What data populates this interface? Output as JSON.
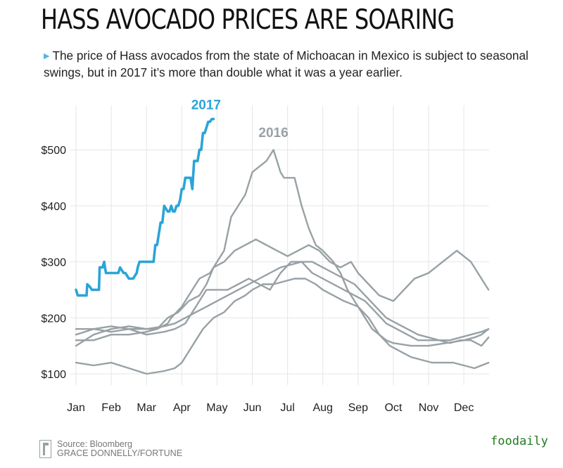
{
  "title": "HASS AVOCADO PRICES ARE SOARING",
  "subtitle": "The price of Hass avocados from the state of Michoacan in Mexico is subject to seasonal swings, but in 2017 it’s more than double what it was a year earlier.",
  "source": {
    "line1": "Source: Bloomberg",
    "line2": "GRACE DONNELLY/FORTUNE"
  },
  "watermark": "foodaily",
  "colors": {
    "highlight": "#2ba4d8",
    "other_years": "#98a1a5",
    "grid": "#e6e6e6"
  },
  "chart_data": {
    "type": "line",
    "title": "HASS AVOCADO PRICES ARE SOARING",
    "xlabel": "",
    "ylabel": "",
    "x_ticks": [
      "Jan",
      "Feb",
      "Mar",
      "Apr",
      "May",
      "Jun",
      "Jul",
      "Aug",
      "Sep",
      "Oct",
      "Nov",
      "Dec"
    ],
    "y_ticks": [
      "$100",
      "$200",
      "$300",
      "$400",
      "$500"
    ],
    "y_tick_values": [
      100,
      200,
      300,
      400,
      500
    ],
    "xlim": [
      0,
      11.75
    ],
    "ylim": [
      90,
      560
    ],
    "grid": true,
    "legend": "none",
    "series": [
      {
        "name": "2017",
        "highlight": true,
        "label": "2017",
        "x": [
          0,
          0.05,
          0.3,
          0.32,
          0.4,
          0.45,
          0.65,
          0.67,
          0.75,
          0.8,
          0.82,
          0.85,
          0.9,
          0.95,
          1.0,
          1.2,
          1.25,
          1.3,
          1.35,
          1.4,
          1.5,
          1.55,
          1.62,
          1.72,
          1.75,
          1.8,
          1.85,
          1.9,
          2.0,
          2.05,
          2.1,
          2.2,
          2.25,
          2.3,
          2.4,
          2.45,
          2.5,
          2.55,
          2.6,
          2.65,
          2.7,
          2.75,
          2.8,
          2.85,
          2.9,
          2.95,
          3.0,
          3.05,
          3.1,
          3.15,
          3.2,
          3.25,
          3.3,
          3.35,
          3.4,
          3.45,
          3.5,
          3.55,
          3.6,
          3.65,
          3.7,
          3.75,
          3.8,
          3.85,
          3.9
        ],
        "values": [
          250,
          240,
          240,
          260,
          255,
          250,
          250,
          290,
          290,
          300,
          290,
          280,
          280,
          280,
          280,
          280,
          290,
          285,
          280,
          280,
          270,
          270,
          270,
          280,
          290,
          300,
          300,
          300,
          300,
          300,
          300,
          300,
          330,
          330,
          370,
          370,
          400,
          395,
          390,
          390,
          400,
          390,
          390,
          400,
          400,
          410,
          430,
          430,
          450,
          450,
          450,
          450,
          430,
          480,
          480,
          480,
          500,
          500,
          530,
          530,
          540,
          550,
          550,
          555,
          555
        ]
      },
      {
        "name": "2016",
        "label": "2016",
        "x": [
          0,
          0.5,
          1,
          1.5,
          2.0,
          2.3,
          2.6,
          2.7,
          3.0,
          3.2,
          3.3,
          3.5,
          3.8,
          4.0,
          4.2,
          4.4,
          4.6,
          4.8,
          5.0,
          5.2,
          5.4,
          5.5,
          5.6,
          5.8,
          5.9,
          6.0,
          6.2,
          6.4,
          6.6,
          6.8,
          7.0,
          7.3,
          7.5,
          7.7,
          8.0,
          8.2,
          8.4,
          8.6,
          8.8,
          9.0,
          9.5,
          10.0,
          10.5,
          11.0,
          11.3,
          11.5,
          11.7
        ],
        "values": [
          150,
          170,
          180,
          185,
          180,
          180,
          190,
          200,
          220,
          240,
          250,
          270,
          280,
          300,
          320,
          380,
          400,
          420,
          460,
          470,
          480,
          490,
          500,
          460,
          450,
          450,
          450,
          400,
          360,
          330,
          320,
          300,
          280,
          250,
          220,
          200,
          180,
          170,
          160,
          155,
          150,
          150,
          155,
          160,
          165,
          170,
          180
        ]
      },
      {
        "name": "",
        "x": [
          0,
          0.5,
          1.0,
          1.5,
          2.0,
          2.5,
          2.8,
          3.0,
          3.3,
          3.6,
          3.9,
          4.2,
          4.5,
          4.8,
          5.0,
          5.3,
          5.6,
          5.9,
          6.2,
          6.5,
          6.8,
          7.0,
          7.3,
          7.6,
          8.0,
          8.3,
          8.6,
          8.9,
          9.2,
          9.5,
          9.8,
          10.1,
          10.4,
          10.7,
          11.0,
          11.3,
          11.7
        ],
        "values": [
          120,
          115,
          120,
          110,
          100,
          105,
          110,
          120,
          150,
          180,
          200,
          210,
          230,
          240,
          250,
          260,
          260,
          265,
          270,
          270,
          260,
          250,
          240,
          230,
          220,
          200,
          170,
          150,
          140,
          130,
          125,
          120,
          120,
          120,
          115,
          110,
          120
        ]
      },
      {
        "name": "",
        "x": [
          0,
          0.5,
          1.0,
          1.5,
          2.0,
          2.3,
          2.6,
          2.9,
          3.2,
          3.5,
          3.7,
          3.9,
          4.2,
          4.5,
          4.8,
          5.1,
          5.4,
          5.7,
          6.0,
          6.3,
          6.6,
          6.9,
          7.2,
          7.5,
          7.8,
          8.0,
          8.3,
          8.6,
          9.0,
          9.3,
          9.6,
          10.0,
          10.4,
          10.8,
          11.2,
          11.5,
          11.7
        ],
        "values": [
          160,
          160,
          170,
          170,
          175,
          180,
          200,
          210,
          230,
          240,
          260,
          290,
          300,
          320,
          330,
          340,
          330,
          320,
          310,
          320,
          330,
          320,
          300,
          290,
          300,
          280,
          260,
          240,
          230,
          250,
          270,
          280,
          300,
          320,
          300,
          270,
          250
        ]
      },
      {
        "name": "",
        "x": [
          0,
          0.5,
          1.0,
          1.5,
          2.0,
          2.5,
          2.8,
          3.1,
          3.4,
          3.7,
          4.0,
          4.3,
          4.6,
          4.9,
          5.2,
          5.5,
          5.8,
          6.1,
          6.4,
          6.7,
          7.0,
          7.3,
          7.6,
          7.9,
          8.2,
          8.5,
          8.8,
          9.1,
          9.4,
          9.7,
          10.0,
          10.3,
          10.6,
          10.9,
          11.2,
          11.5,
          11.7
        ],
        "values": [
          170,
          180,
          175,
          180,
          170,
          175,
          180,
          190,
          220,
          250,
          250,
          250,
          260,
          270,
          260,
          250,
          280,
          300,
          300,
          280,
          270,
          260,
          250,
          240,
          230,
          210,
          190,
          180,
          170,
          160,
          160,
          160,
          155,
          160,
          160,
          150,
          165
        ]
      },
      {
        "name": "",
        "x": [
          0,
          0.5,
          1.0,
          1.5,
          2.0,
          2.5,
          2.8,
          3.1,
          3.4,
          3.7,
          4.0,
          4.3,
          4.6,
          4.9,
          5.2,
          5.5,
          5.8,
          6.1,
          6.4,
          6.7,
          7.0,
          7.3,
          7.6,
          7.9,
          8.2,
          8.5,
          8.8,
          9.1,
          9.4,
          9.7,
          10.0,
          10.3,
          10.6,
          10.9,
          11.2,
          11.5,
          11.7
        ],
        "values": [
          180,
          180,
          185,
          180,
          180,
          185,
          190,
          200,
          210,
          220,
          230,
          240,
          250,
          260,
          270,
          280,
          290,
          295,
          300,
          300,
          290,
          280,
          270,
          260,
          240,
          220,
          200,
          190,
          180,
          170,
          165,
          160,
          160,
          165,
          170,
          175,
          180
        ]
      }
    ]
  }
}
